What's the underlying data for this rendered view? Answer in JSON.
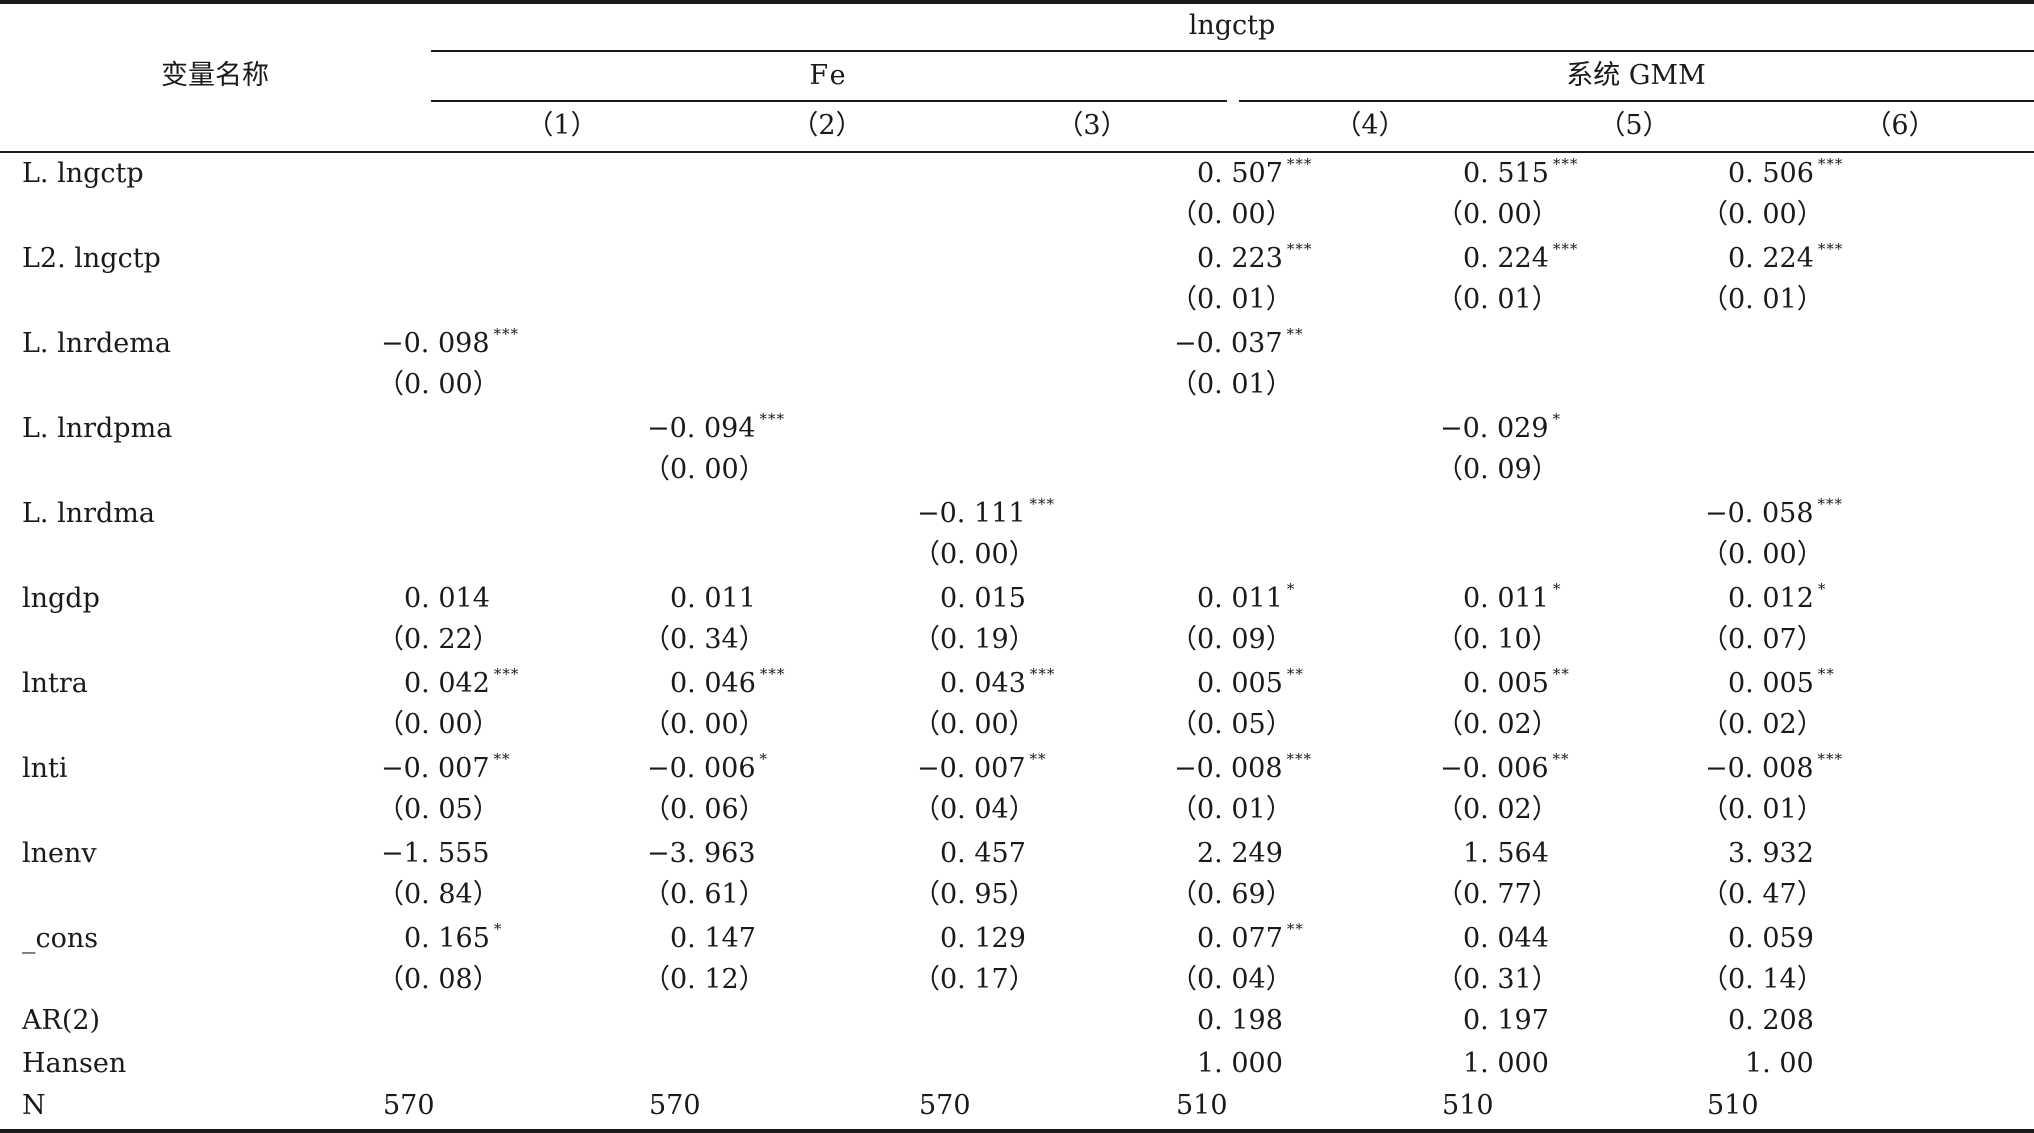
{
  "header": {
    "variable_label": "变量名称",
    "dependent_var": "lngctp",
    "group_fe": "Fe",
    "group_gmm": "系统 GMM",
    "columns": [
      "（1）",
      "（2）",
      "（3）",
      "（4）",
      "（5）",
      "（6）"
    ]
  },
  "rows": [
    {
      "label": "L. lngctp",
      "coef": [
        "",
        "",
        "",
        "0. 507",
        "0. 515",
        "0. 506"
      ],
      "stars": [
        "",
        "",
        "",
        "***",
        "***",
        "***"
      ],
      "p": [
        "",
        "",
        "",
        "（0. 00）",
        "（0. 00）",
        "（0. 00）"
      ]
    },
    {
      "label": "L2. lngctp",
      "coef": [
        "",
        "",
        "",
        "0. 223",
        "0. 224",
        "0. 224"
      ],
      "stars": [
        "",
        "",
        "",
        "***",
        "***",
        "***"
      ],
      "p": [
        "",
        "",
        "",
        "（0. 01）",
        "（0. 01）",
        "（0. 01）"
      ]
    },
    {
      "label": "L. lnrdema",
      "coef": [
        "−0. 098",
        "",
        "",
        "−0. 037",
        "",
        ""
      ],
      "stars": [
        "***",
        "",
        "",
        "**",
        "",
        ""
      ],
      "p": [
        "（0. 00）",
        "",
        "",
        "（0. 01）",
        "",
        ""
      ]
    },
    {
      "label": "L. lnrdpma",
      "coef": [
        "",
        "−0. 094",
        "",
        "",
        "−0. 029",
        ""
      ],
      "stars": [
        "",
        "***",
        "",
        "",
        "*",
        ""
      ],
      "p": [
        "",
        "（0. 00）",
        "",
        "",
        "（0. 09）",
        ""
      ]
    },
    {
      "label": "L. lnrdma",
      "coef": [
        "",
        "",
        "−0. 111",
        "",
        "",
        "−0. 058"
      ],
      "stars": [
        "",
        "",
        "***",
        "",
        "",
        "***"
      ],
      "p": [
        "",
        "",
        "（0. 00）",
        "",
        "",
        "（0. 00）"
      ]
    },
    {
      "label": "lngdp",
      "coef": [
        "0. 014",
        "0. 011",
        "0. 015",
        "0. 011",
        "0. 011",
        "0. 012"
      ],
      "stars": [
        "",
        "",
        "",
        "*",
        "*",
        "*"
      ],
      "p": [
        "（0. 22）",
        "（0. 34）",
        "（0. 19）",
        "（0. 09）",
        "（0. 10）",
        "（0. 07）"
      ]
    },
    {
      "label": "lntra",
      "coef": [
        "0. 042",
        "0. 046",
        "0. 043",
        "0. 005",
        "0. 005",
        "0. 005"
      ],
      "stars": [
        "***",
        "***",
        "***",
        "**",
        "**",
        "**"
      ],
      "p": [
        "（0. 00）",
        "（0. 00）",
        "（0. 00）",
        "（0. 05）",
        "（0. 02）",
        "（0. 02）"
      ]
    },
    {
      "label": "lnti",
      "coef": [
        "−0. 007",
        "−0. 006",
        "−0. 007",
        "−0. 008",
        "−0. 006",
        "−0. 008"
      ],
      "stars": [
        "**",
        "*",
        "**",
        "***",
        "**",
        "***"
      ],
      "p": [
        "（0. 05）",
        "（0. 06）",
        "（0. 04）",
        "（0. 01）",
        "（0. 02）",
        "（0. 01）"
      ]
    },
    {
      "label": "lnenv",
      "coef": [
        "−1. 555",
        "−3. 963",
        "0. 457",
        "2. 249",
        "1. 564",
        "3. 932"
      ],
      "stars": [
        "",
        "",
        "",
        "",
        "",
        ""
      ],
      "p": [
        "（0. 84）",
        "（0. 61）",
        "（0. 95）",
        "（0. 69）",
        "（0. 77）",
        "（0. 47）"
      ]
    },
    {
      "label": "_cons",
      "coef": [
        "0. 165",
        "0. 147",
        "0. 129",
        "0. 077",
        "0. 044",
        "0. 059"
      ],
      "stars": [
        "*",
        "",
        "",
        "**",
        "",
        ""
      ],
      "p": [
        "（0. 08）",
        "（0. 12）",
        "（0. 17）",
        "（0. 04）",
        "（0. 31）",
        "（0. 14）"
      ]
    }
  ],
  "stats": [
    {
      "label": "AR(2)",
      "values": [
        "",
        "",
        "",
        "0. 198",
        "0. 197",
        "0. 208"
      ]
    },
    {
      "label": "Hansen",
      "values": [
        "",
        "",
        "",
        "1. 000",
        "1. 000",
        "1. 00"
      ]
    },
    {
      "label": "N",
      "values": [
        "570",
        "570",
        "570",
        "510",
        "510",
        "510"
      ]
    }
  ]
}
